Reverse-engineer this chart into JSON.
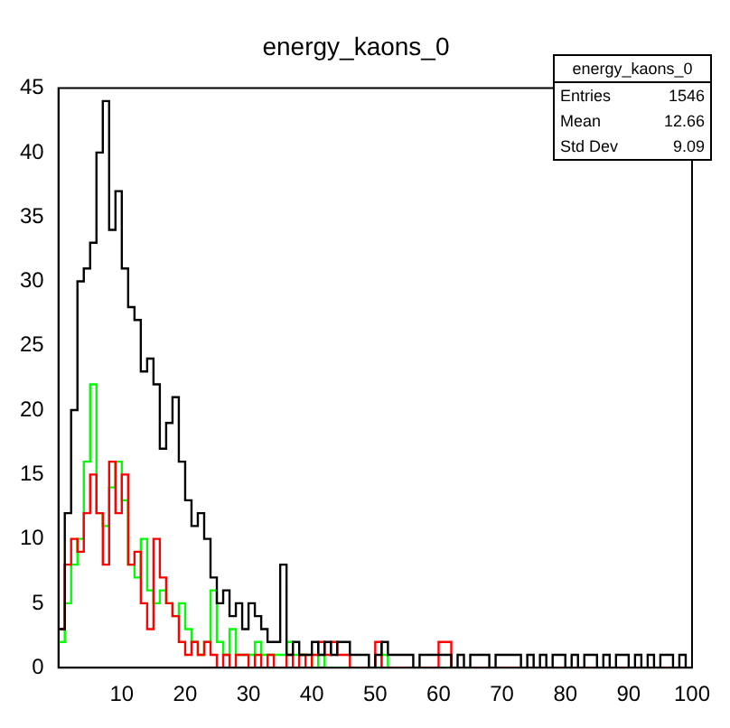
{
  "chart_data": {
    "type": "histogram",
    "title": "energy_kaons_0",
    "bins": [
      0,
      1,
      2,
      3,
      4,
      5,
      6,
      7,
      8,
      9,
      10,
      11,
      12,
      13,
      14,
      15,
      16,
      17,
      18,
      19,
      20,
      21,
      22,
      23,
      24,
      25,
      26,
      27,
      28,
      29,
      30,
      31,
      32,
      33,
      34,
      35,
      36,
      37,
      38,
      39,
      40,
      41,
      42,
      43,
      44,
      45,
      46,
      47,
      48,
      49,
      50,
      51,
      52,
      53,
      54,
      55,
      56,
      57,
      58,
      59,
      60,
      61,
      62,
      63,
      64,
      65,
      66,
      67,
      68,
      69,
      70,
      71,
      72,
      73,
      74,
      75,
      76,
      77,
      78,
      79,
      80,
      81,
      82,
      83,
      84,
      85,
      86,
      87,
      88,
      89,
      90,
      91,
      92,
      93,
      94,
      95,
      96,
      97,
      98,
      99,
      100
    ],
    "series": [
      {
        "color": "#000000",
        "values": [
          3,
          12,
          20,
          30,
          31,
          33,
          40,
          44,
          34,
          37,
          31,
          28,
          27,
          23,
          24,
          22,
          17,
          19,
          21,
          16,
          13,
          11,
          12,
          10,
          7,
          5,
          6,
          4,
          5,
          3,
          5,
          4,
          3,
          2,
          2,
          8,
          1,
          2,
          1,
          1,
          2,
          1,
          2,
          1,
          2,
          2,
          1,
          1,
          1,
          0,
          1,
          2,
          1,
          1,
          1,
          1,
          0,
          1,
          1,
          1,
          1,
          1,
          0,
          1,
          0,
          1,
          1,
          1,
          0,
          1,
          1,
          1,
          1,
          0,
          1,
          0,
          1,
          0,
          1,
          1,
          0,
          1,
          0,
          1,
          1,
          0,
          1,
          0,
          1,
          1,
          0,
          1,
          0,
          1,
          0,
          1,
          1,
          0,
          1,
          0
        ]
      },
      {
        "color": "#ff0000",
        "values": [
          3,
          8,
          10,
          9,
          12,
          15,
          12,
          8,
          16,
          12,
          15,
          8,
          9,
          5,
          3,
          10,
          7,
          5,
          4,
          2,
          1,
          2,
          1,
          2,
          1,
          0,
          1,
          0,
          1,
          1,
          0,
          1,
          0,
          1,
          0,
          0,
          1,
          0,
          1,
          0,
          1,
          2,
          1,
          2,
          1,
          1,
          0,
          0,
          0,
          0,
          2,
          0,
          0,
          0,
          0,
          0,
          0,
          0,
          0,
          0,
          2,
          2,
          0,
          0,
          0,
          0,
          0,
          0,
          0,
          0,
          0,
          0,
          0,
          0,
          0,
          0,
          0,
          0,
          0,
          0,
          0,
          0,
          0,
          0,
          0,
          0,
          0,
          0,
          0,
          0,
          0,
          0,
          0,
          0,
          0,
          0,
          0,
          0,
          0,
          0
        ]
      },
      {
        "color": "#00ff00",
        "values": [
          2,
          5,
          8,
          10,
          16,
          22,
          12,
          11,
          14,
          16,
          13,
          8,
          7,
          10,
          6,
          5,
          6,
          5,
          4,
          5,
          3,
          2,
          1,
          2,
          6,
          2,
          1,
          3,
          1,
          1,
          1,
          2,
          1,
          1,
          1,
          1,
          2,
          1,
          1,
          1,
          0,
          1,
          0,
          0,
          0,
          0,
          0,
          0,
          0,
          0,
          0,
          1,
          0,
          0,
          0,
          0,
          0,
          0,
          0,
          0,
          0,
          0,
          0,
          0,
          0,
          0,
          0,
          0,
          0,
          0,
          0,
          0,
          0,
          0,
          0,
          0,
          0,
          0,
          0,
          0,
          0,
          0,
          0,
          0,
          0,
          0,
          0,
          0,
          0,
          0,
          0,
          0,
          0,
          0,
          0,
          0,
          0,
          0,
          0,
          0
        ]
      }
    ],
    "xlim": [
      0,
      100
    ],
    "xticks": [
      10,
      20,
      30,
      40,
      50,
      60,
      70,
      80,
      90,
      100
    ],
    "ylim": [
      0,
      45
    ],
    "yticks": [
      0,
      5,
      10,
      15,
      20,
      25,
      30,
      35,
      40,
      45
    ],
    "grid": false,
    "legend": false,
    "annotations": [
      "energy_kaons_0",
      "Entries 1546",
      "Mean 12.66",
      "Std Dev 9.09"
    ]
  }
}
